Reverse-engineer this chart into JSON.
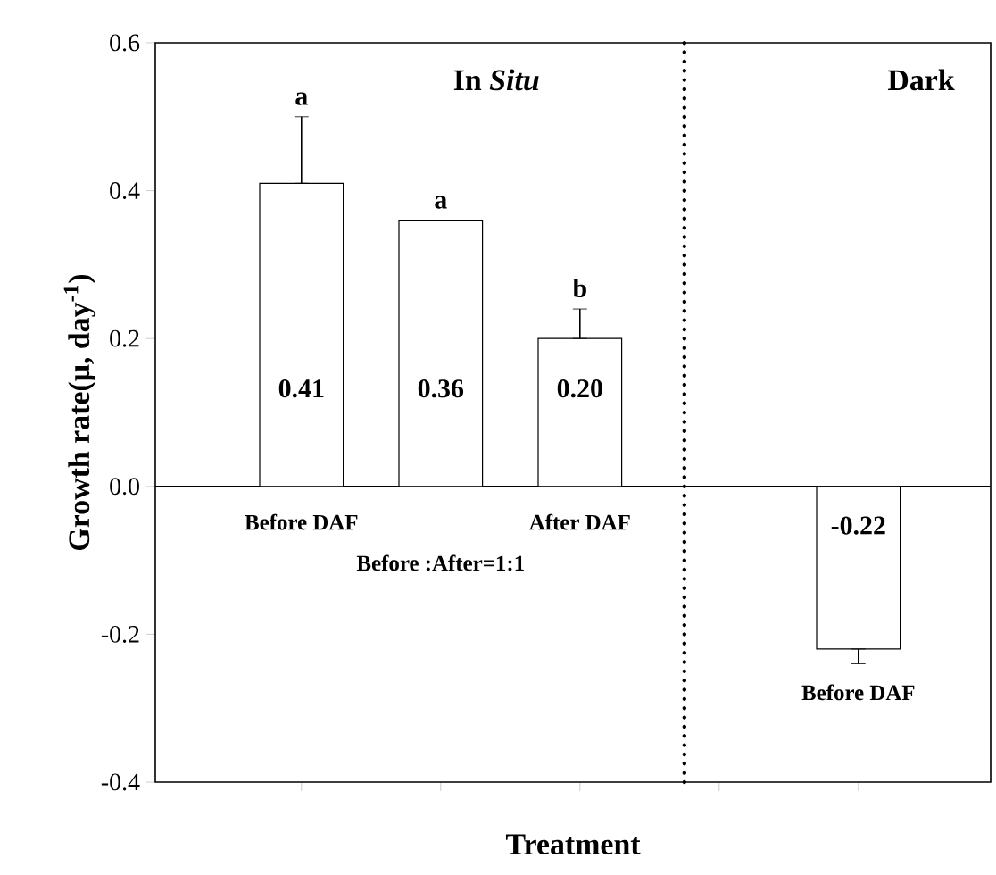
{
  "chart_data": {
    "type": "bar",
    "xlabel": "Treatment",
    "ylabel": "Growth rate(μ, day$^{-1}$)",
    "categories": [
      "Before DAF",
      "Before :After=1:1",
      "After DAF",
      null,
      "Before DAF"
    ],
    "values": [
      0.41,
      0.36,
      0.2,
      null,
      -0.22
    ],
    "errors": [
      0.09,
      null,
      0.04,
      null,
      0.02
    ],
    "color": "#ffffff",
    "value_labels": [
      "0.41",
      "0.36",
      "0.20",
      null,
      "-0.22"
    ],
    "ylim": [
      -0.4,
      0.6
    ],
    "yticks": [
      {
        "value": -0.4,
        "label": "-0.4"
      },
      {
        "value": -0.2,
        "label": "-0.2"
      },
      {
        "value": 0,
        "label": "0.0"
      },
      {
        "value": 0.2,
        "label": "0.2"
      },
      {
        "value": 0.4,
        "label": "0.4"
      },
      {
        "value": 0.6,
        "label": "0.6"
      }
    ],
    "annotations": [
      "a",
      "a",
      "b",
      "In *Situ*",
      "Dark"
    ],
    "grid": false
  }
}
